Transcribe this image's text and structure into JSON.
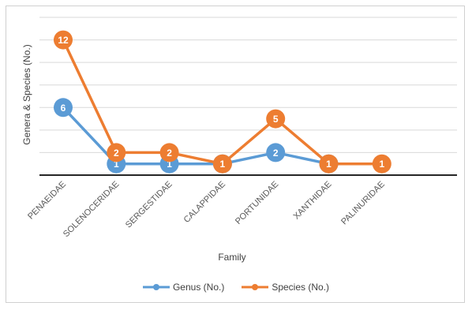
{
  "chart_data": {
    "type": "line",
    "categories": [
      "PENAEIDAE",
      "SOLENOCERIDAE",
      "SERGESTIDAE",
      "CALAPPIDAE",
      "PORTUNIDAE",
      "XANTHIDAE",
      "PALINURIDAE"
    ],
    "series": [
      {
        "name": "Genus (No.)",
        "color": "#5b9bd5",
        "values": [
          6,
          1,
          1,
          1,
          2,
          1,
          null
        ]
      },
      {
        "name": "Species (No.)",
        "color": "#ed7d31",
        "values": [
          12,
          2,
          2,
          1,
          5,
          1,
          1
        ]
      }
    ],
    "xlabel": "Family",
    "ylabel": "Genera & Species (No.)",
    "ylim": [
      0,
      14
    ],
    "grid": true,
    "legend": "bottom"
  }
}
